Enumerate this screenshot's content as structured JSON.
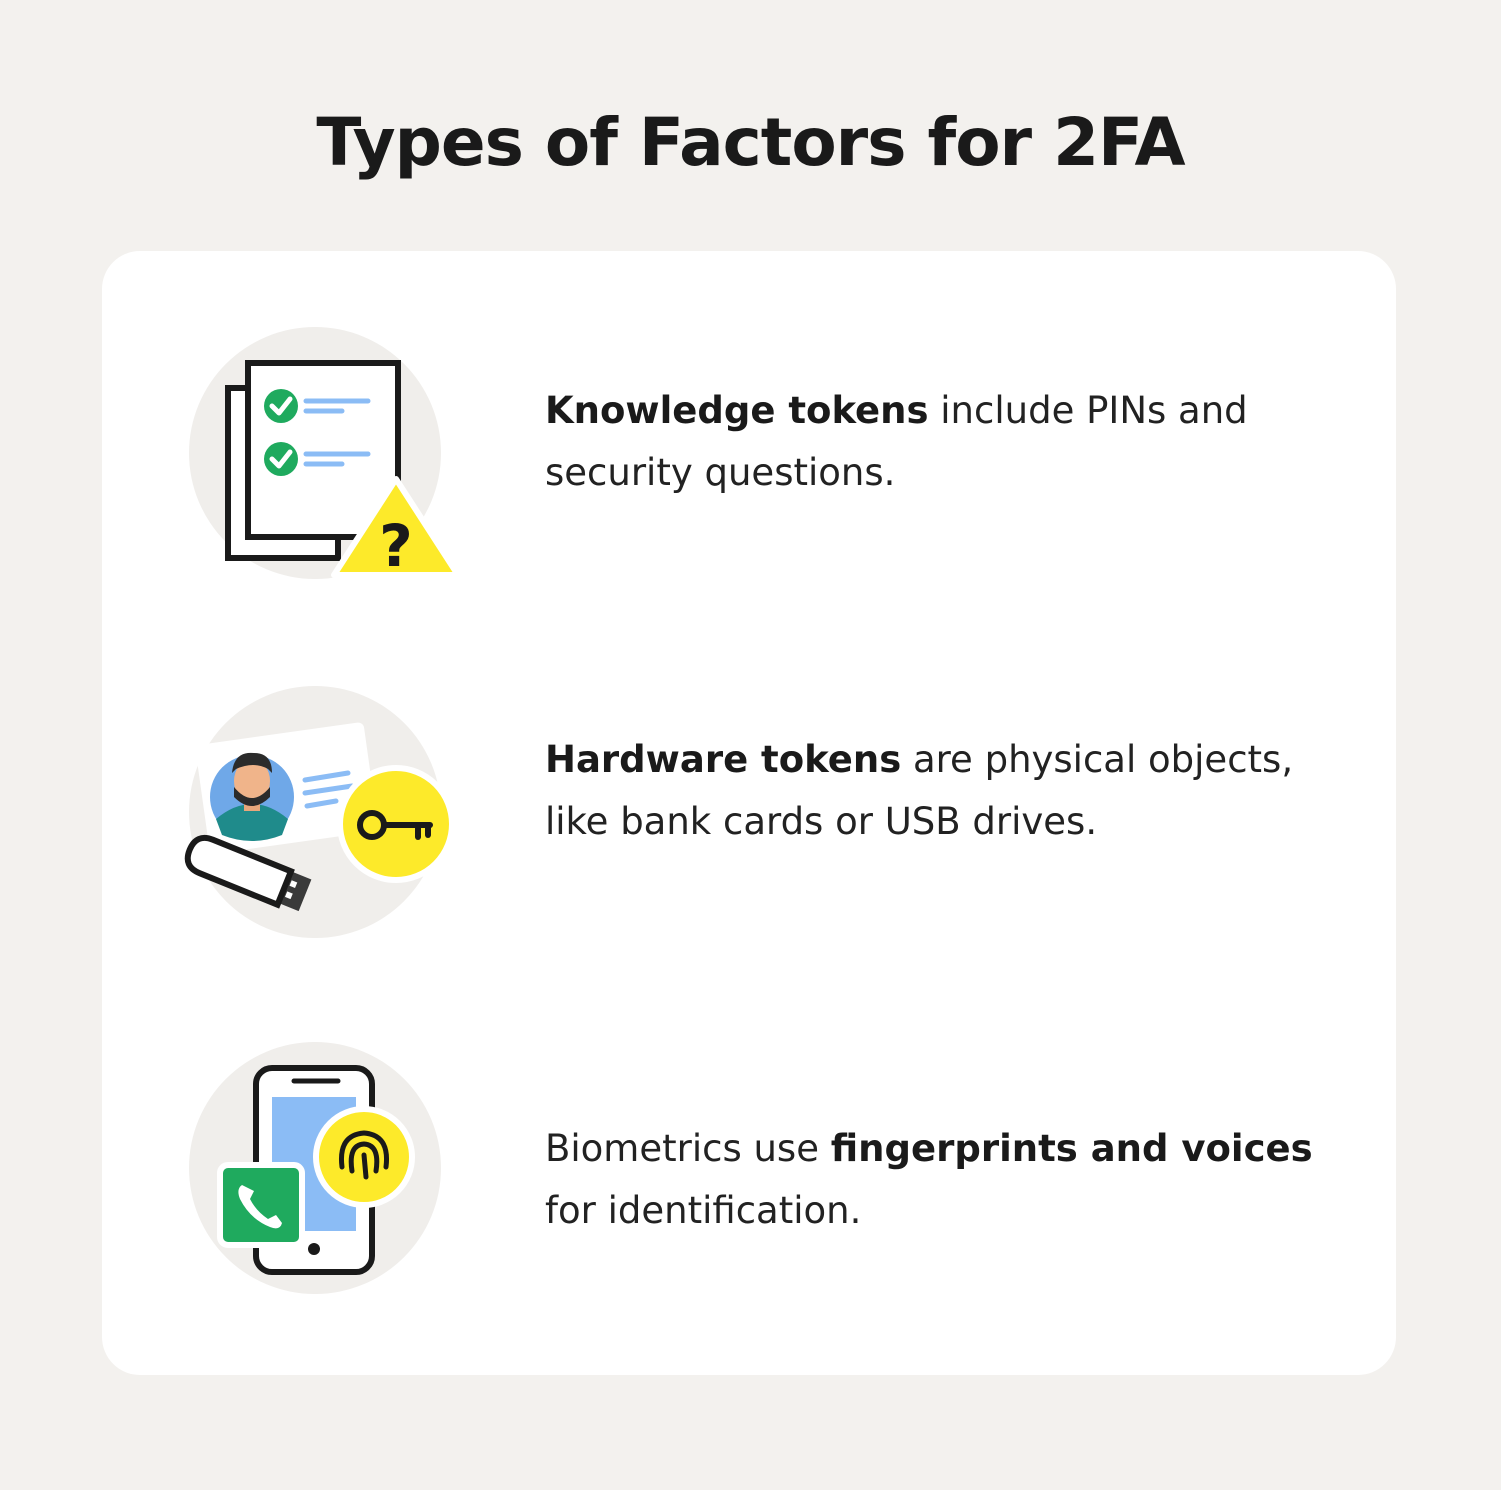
{
  "title": "Types of Factors for 2FA",
  "colors": {
    "background": "#f3f1ee",
    "card": "#ffffff",
    "accent_yellow": "#fdea2a",
    "check_green": "#1faa5e",
    "light_blue": "#8bbcf5",
    "illustration_circle": "#f0eeeb"
  },
  "factors": [
    {
      "icon": "document-checklist-warning-icon",
      "parts": [
        {
          "text": "Knowledge tokens",
          "bold": true
        },
        {
          "text": " include PINs and security questions.",
          "bold": false
        }
      ],
      "badge_glyph": "?"
    },
    {
      "icon": "id-card-usb-key-icon",
      "parts": [
        {
          "text": "Hardware tokens",
          "bold": true
        },
        {
          "text": " are physical objects, like bank cards or USB drives.",
          "bold": false
        }
      ]
    },
    {
      "icon": "phone-fingerprint-icon",
      "parts": [
        {
          "text": "Biometrics use ",
          "bold": false
        },
        {
          "text": "fingerprints and voices",
          "bold": true
        },
        {
          "text": " for identification.",
          "bold": false
        }
      ]
    }
  ]
}
